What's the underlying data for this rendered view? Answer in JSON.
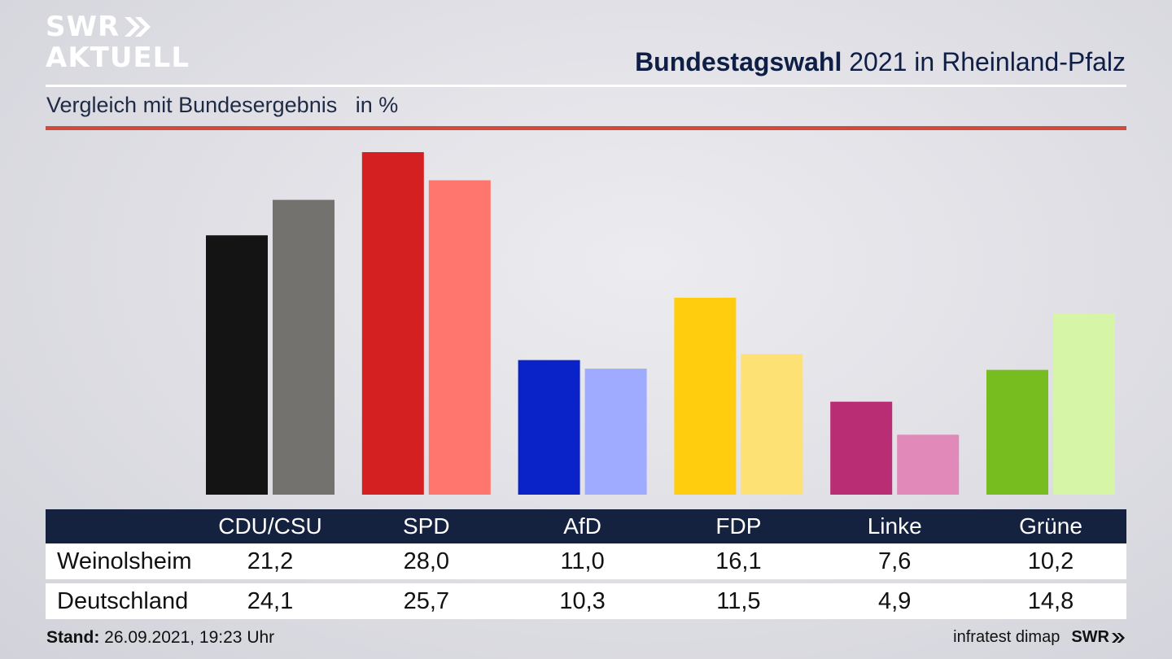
{
  "brand": {
    "logo_line1": "SWR",
    "logo_line2": "AKTUELL",
    "footer_brand": "SWR"
  },
  "header": {
    "title_bold": "Bundestagswahl",
    "title_rest": " 2021 in Rheinland-Pfalz",
    "subtitle": "Vergleich mit Bundesergebnis   in %"
  },
  "footer": {
    "stand_label": "Stand:",
    "stand_value": " 26.09.2021, 19:23 Uhr",
    "source": "infratest dimap"
  },
  "colors": {
    "local": [
      "#141414",
      "#d42020",
      "#0a23c8",
      "#ffcc0e",
      "#b82d74",
      "#77bd1f"
    ],
    "national": [
      "#74726f",
      "#ff766e",
      "#9eabff",
      "#fde174",
      "#e189b8",
      "#d6f5a6"
    ],
    "table_header_bg": "#14213f",
    "accent_rule": "#d24a3a"
  },
  "chart_data": {
    "type": "bar",
    "title": "Bundestagswahl 2021 in Rheinland-Pfalz",
    "subtitle": "Vergleich mit Bundesergebnis in %",
    "categories": [
      "CDU/CSU",
      "SPD",
      "AfD",
      "FDP",
      "Linke",
      "Grüne"
    ],
    "series": [
      {
        "name": "Weinolsheim",
        "values": [
          21.2,
          28.0,
          11.0,
          16.1,
          7.6,
          10.2
        ],
        "labels": [
          "21,2",
          "28,0",
          "11,0",
          "16,1",
          "7,6",
          "10,2"
        ]
      },
      {
        "name": "Deutschland",
        "values": [
          24.1,
          25.7,
          10.3,
          11.5,
          4.9,
          14.8
        ],
        "labels": [
          "24,1",
          "25,7",
          "10,3",
          "11,5",
          "4,9",
          "14,8"
        ]
      }
    ],
    "ylim": [
      0,
      28
    ]
  }
}
